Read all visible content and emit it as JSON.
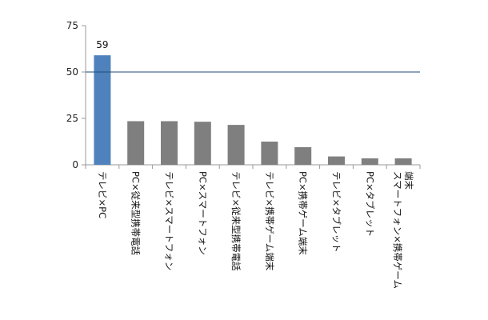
{
  "chart_data": {
    "type": "bar",
    "title": "",
    "xlabel": "",
    "ylabel": "",
    "ylim": [
      0,
      75
    ],
    "yticks": [
      0,
      25,
      50,
      75
    ],
    "categories": [
      "テレビ×PC",
      "PC×従来型携帯電話",
      "テレビ×スマートフォン",
      "PC×スマートフォン",
      "テレビ×従来型携帯電話",
      "テレビ×携帯ゲーム端末",
      "PC×携帯ゲーム端末",
      "テレビ×タブレット",
      "PC×タブレット",
      "スマートフォン×携帯ゲーム端末"
    ],
    "values": [
      59,
      23.5,
      23.5,
      23.2,
      21.5,
      12.5,
      9.5,
      4.5,
      3.5,
      3.5
    ],
    "highlight_index": 0,
    "data_labels": [
      {
        "index": 0,
        "text": "59"
      }
    ],
    "reference_line": {
      "value": 50
    },
    "grid": false,
    "legend": "none",
    "colors": {
      "highlight": "#4f81bd",
      "bar": "#7f7f7f",
      "reference_line": "#1f4e79",
      "axis": "#999999"
    }
  }
}
